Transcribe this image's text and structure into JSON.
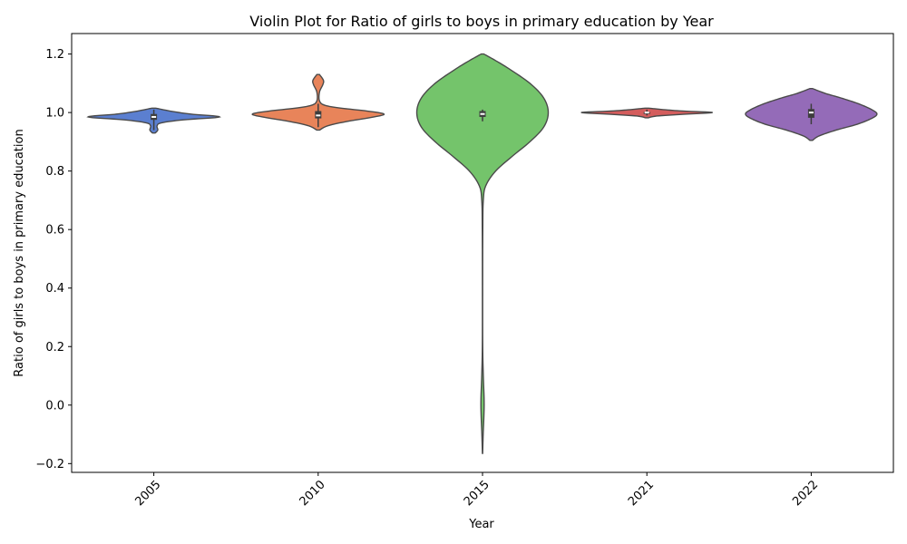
{
  "chart_data": {
    "type": "violin",
    "title": "Violin Plot for Ratio of girls to boys in primary education by Year",
    "xlabel": "Year",
    "ylabel": "Ratio of girls to boys in primary education",
    "categories": [
      "2005",
      "2010",
      "2015",
      "2021",
      "2022"
    ],
    "colors": [
      "#5b7fd0",
      "#e8845a",
      "#74c46b",
      "#d45d5d",
      "#946bb8"
    ],
    "yticks": [
      -0.2,
      0.0,
      0.2,
      0.4,
      0.6,
      0.8,
      1.0,
      1.2
    ],
    "ytick_labels": [
      "−0.2",
      "0.0",
      "0.2",
      "0.4",
      "0.6",
      "0.8",
      "1.0",
      "1.2"
    ],
    "ylim": [
      -0.23,
      1.27
    ],
    "grid": false,
    "violins": [
      {
        "category": "2005",
        "ymin": 0.93,
        "ymax": 1.015,
        "q1": 0.975,
        "median": 0.985,
        "q3": 0.995,
        "whisker_low": 0.94,
        "whisker_high": 1.01,
        "density": [
          [
            0.93,
            0.02
          ],
          [
            0.94,
            0.06
          ],
          [
            0.955,
            0.05
          ],
          [
            0.965,
            0.12
          ],
          [
            0.975,
            0.45
          ],
          [
            0.985,
            1.0
          ],
          [
            0.995,
            0.55
          ],
          [
            1.005,
            0.25
          ],
          [
            1.015,
            0.03
          ]
        ]
      },
      {
        "category": "2010",
        "ymin": 0.94,
        "ymax": 1.13,
        "q1": 0.98,
        "median": 0.99,
        "q3": 1.005,
        "whisker_low": 0.95,
        "whisker_high": 1.03,
        "density": [
          [
            0.94,
            0.02
          ],
          [
            0.955,
            0.15
          ],
          [
            0.97,
            0.45
          ],
          [
            0.985,
            0.85
          ],
          [
            0.995,
            1.0
          ],
          [
            1.005,
            0.75
          ],
          [
            1.015,
            0.35
          ],
          [
            1.025,
            0.1
          ],
          [
            1.04,
            0.02
          ],
          [
            1.07,
            0.02
          ],
          [
            1.095,
            0.07
          ],
          [
            1.11,
            0.08
          ],
          [
            1.13,
            0.02
          ]
        ]
      },
      {
        "category": "2015",
        "ymin": -0.165,
        "ymax": 1.2,
        "q1": 0.985,
        "median": 0.995,
        "q3": 1.005,
        "whisker_low": 0.97,
        "whisker_high": 1.01,
        "density": [
          [
            -0.165,
            0.002
          ],
          [
            -0.1,
            0.01
          ],
          [
            -0.03,
            0.022
          ],
          [
            0.02,
            0.024
          ],
          [
            0.1,
            0.012
          ],
          [
            0.2,
            0.003
          ],
          [
            0.4,
            0.002
          ],
          [
            0.6,
            0.004
          ],
          [
            0.7,
            0.012
          ],
          [
            0.75,
            0.05
          ],
          [
            0.8,
            0.2
          ],
          [
            0.85,
            0.45
          ],
          [
            0.9,
            0.72
          ],
          [
            0.95,
            0.93
          ],
          [
            1.0,
            1.0
          ],
          [
            1.05,
            0.93
          ],
          [
            1.1,
            0.72
          ],
          [
            1.15,
            0.4
          ],
          [
            1.18,
            0.18
          ],
          [
            1.2,
            0.02
          ]
        ]
      },
      {
        "category": "2021",
        "ymin": 0.982,
        "ymax": 1.015,
        "q1": 0.995,
        "median": 1.0,
        "q3": 1.002,
        "whisker_low": 0.99,
        "whisker_high": 1.01,
        "density": [
          [
            0.982,
            0.02
          ],
          [
            0.988,
            0.15
          ],
          [
            0.994,
            0.55
          ],
          [
            1.0,
            1.0
          ],
          [
            1.005,
            0.55
          ],
          [
            1.01,
            0.25
          ],
          [
            1.015,
            0.03
          ]
        ]
      },
      {
        "category": "2022",
        "ymin": 0.905,
        "ymax": 1.082,
        "q1": 0.982,
        "median": 1.0,
        "q3": 1.012,
        "whisker_low": 0.96,
        "whisker_high": 1.03,
        "density": [
          [
            0.905,
            0.02
          ],
          [
            0.92,
            0.12
          ],
          [
            0.94,
            0.38
          ],
          [
            0.96,
            0.7
          ],
          [
            0.98,
            0.92
          ],
          [
            0.995,
            1.0
          ],
          [
            1.01,
            0.92
          ],
          [
            1.03,
            0.72
          ],
          [
            1.05,
            0.45
          ],
          [
            1.065,
            0.22
          ],
          [
            1.082,
            0.02
          ]
        ]
      }
    ]
  }
}
